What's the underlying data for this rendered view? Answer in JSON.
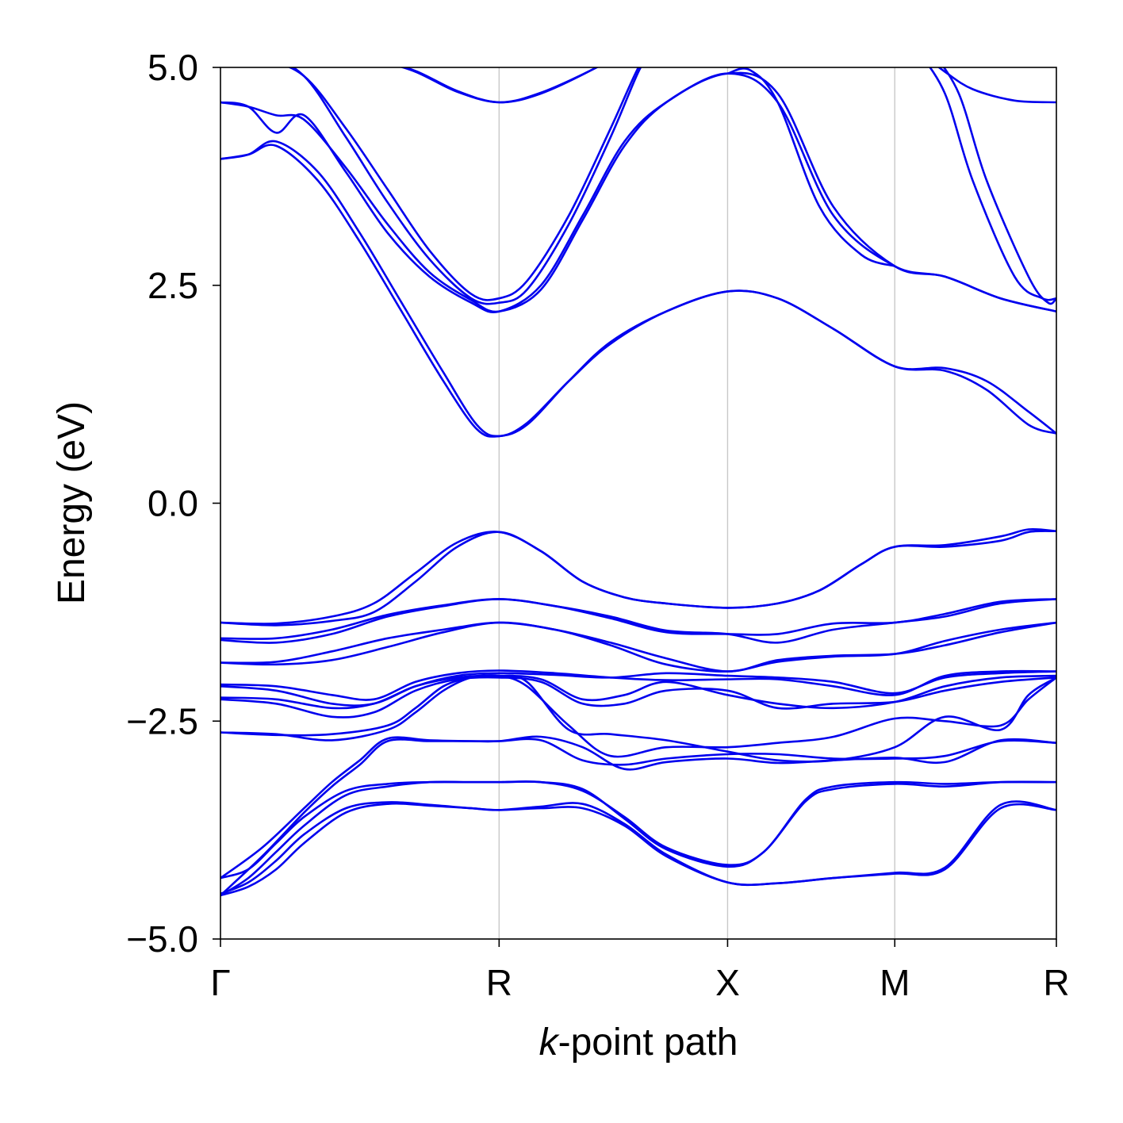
{
  "chart_data": {
    "type": "line",
    "title": "",
    "xlabel_italic": "k",
    "xlabel_rest": "-point path",
    "ylabel": "Energy (eV)",
    "ylim": [
      -5.0,
      5.0
    ],
    "yticks": [
      {
        "value": 5.0,
        "label": "5.0"
      },
      {
        "value": 2.5,
        "label": "2.5"
      },
      {
        "value": 0.0,
        "label": "0.0"
      },
      {
        "value": -2.5,
        "label": "−2.5"
      },
      {
        "value": -5.0,
        "label": "−5.0"
      }
    ],
    "xlim": [
      0,
      3
    ],
    "kpoints": [
      {
        "position": 0.0,
        "label": "Γ"
      },
      {
        "position": 1.0,
        "label": "R"
      },
      {
        "position": 1.82,
        "label": "X"
      },
      {
        "position": 2.42,
        "label": "M"
      },
      {
        "position": 3.0,
        "label": "R"
      }
    ],
    "grid": "vertical lines at k-points",
    "band_color": "#0000ee",
    "series": [
      {
        "x": [
          0,
          0.1,
          0.2,
          0.3,
          0.45,
          0.6,
          0.75,
          0.9,
          1.0,
          1.15,
          1.3,
          1.45,
          1.6,
          1.82,
          2.0,
          2.2,
          2.42,
          2.6,
          2.8,
          3.0
        ],
        "y": [
          -4.5,
          -4.4,
          -4.2,
          -3.9,
          -3.55,
          -3.45,
          -3.47,
          -3.5,
          -3.52,
          -3.5,
          -3.5,
          -3.7,
          -4.05,
          -4.35,
          -4.36,
          -4.3,
          -4.25,
          -4.2,
          -3.5,
          -3.52
        ]
      },
      {
        "x": [
          0,
          0.1,
          0.2,
          0.3,
          0.45,
          0.6,
          0.75,
          0.9,
          1.0,
          1.15,
          1.3,
          1.45,
          1.6,
          1.82,
          2.0,
          2.2,
          2.42,
          2.6,
          2.8,
          3.0
        ],
        "y": [
          -4.48,
          -4.35,
          -4.1,
          -3.8,
          -3.5,
          -3.43,
          -3.46,
          -3.5,
          -3.52,
          -3.48,
          -3.45,
          -3.68,
          -4.03,
          -4.35,
          -4.36,
          -4.3,
          -4.24,
          -4.18,
          -3.46,
          -3.52
        ]
      },
      {
        "x": [
          0,
          0.1,
          0.2,
          0.3,
          0.45,
          0.6,
          0.75,
          0.9,
          1.0,
          1.15,
          1.3,
          1.45,
          1.6,
          1.82,
          1.95,
          2.1,
          2.2,
          2.42,
          2.6,
          2.8,
          3.0
        ],
        "y": [
          -4.3,
          -4.2,
          -3.9,
          -3.6,
          -3.3,
          -3.22,
          -3.2,
          -3.2,
          -3.2,
          -3.2,
          -3.3,
          -3.6,
          -3.95,
          -4.15,
          -4.0,
          -3.4,
          -3.25,
          -3.2,
          -3.22,
          -3.2,
          -3.2
        ]
      },
      {
        "x": [
          0,
          0.1,
          0.2,
          0.3,
          0.45,
          0.6,
          0.75,
          0.9,
          1.0,
          1.15,
          1.3,
          1.45,
          1.6,
          1.82,
          1.95,
          2.1,
          2.2,
          2.42,
          2.6,
          2.8,
          3.0
        ],
        "y": [
          -4.5,
          -4.3,
          -4.0,
          -3.7,
          -3.35,
          -3.25,
          -3.2,
          -3.2,
          -3.2,
          -3.2,
          -3.28,
          -3.62,
          -3.97,
          -4.17,
          -4.0,
          -3.42,
          -3.28,
          -3.22,
          -3.25,
          -3.2,
          -3.2
        ]
      },
      {
        "x": [
          0,
          0.15,
          0.3,
          0.4,
          0.5,
          0.6,
          0.75,
          0.9,
          1.0,
          1.15,
          1.3,
          1.45,
          1.6,
          1.82,
          2.0,
          2.2,
          2.42,
          2.6,
          2.8,
          3.0
        ],
        "y": [
          -4.3,
          -3.95,
          -3.5,
          -3.2,
          -2.95,
          -2.7,
          -2.72,
          -2.73,
          -2.73,
          -2.68,
          -2.8,
          -3.05,
          -2.97,
          -2.93,
          -2.98,
          -2.95,
          -2.92,
          -2.97,
          -2.72,
          -2.75
        ]
      },
      {
        "x": [
          0,
          0.15,
          0.3,
          0.4,
          0.5,
          0.6,
          0.75,
          0.9,
          1.0,
          1.15,
          1.3,
          1.45,
          1.6,
          1.82,
          2.0,
          2.2,
          2.42,
          2.6,
          2.8,
          3.0
        ],
        "y": [
          -4.5,
          -4.05,
          -3.55,
          -3.25,
          -3.0,
          -2.73,
          -2.73,
          -2.73,
          -2.73,
          -2.72,
          -2.95,
          -3.0,
          -2.93,
          -2.88,
          -2.88,
          -2.93,
          -2.93,
          -2.9,
          -2.73,
          -2.75
        ]
      },
      {
        "x": [
          0,
          0.2,
          0.4,
          0.6,
          0.7,
          0.8,
          0.9,
          1.0,
          1.1,
          1.25,
          1.4,
          1.6,
          1.82,
          2.0,
          2.2,
          2.42,
          2.6,
          2.8,
          2.9,
          3.0
        ],
        "y": [
          -2.63,
          -2.65,
          -2.72,
          -2.6,
          -2.4,
          -2.15,
          -2.0,
          -1.98,
          -2.05,
          -2.6,
          -2.65,
          -2.72,
          -2.85,
          -2.95,
          -2.95,
          -2.8,
          -2.45,
          -2.6,
          -2.2,
          -2.0
        ]
      },
      {
        "x": [
          0,
          0.2,
          0.4,
          0.6,
          0.7,
          0.8,
          0.9,
          1.0,
          1.1,
          1.25,
          1.4,
          1.6,
          1.82,
          2.0,
          2.2,
          2.42,
          2.6,
          2.8,
          2.9,
          3.0
        ],
        "y": [
          -2.63,
          -2.66,
          -2.65,
          -2.55,
          -2.35,
          -2.1,
          -2.0,
          -1.98,
          -2.1,
          -2.55,
          -2.9,
          -2.8,
          -2.8,
          -2.75,
          -2.68,
          -2.47,
          -2.5,
          -2.55,
          -2.25,
          -2.0
        ]
      },
      {
        "x": [
          0,
          0.2,
          0.4,
          0.55,
          0.7,
          0.85,
          1.0,
          1.15,
          1.3,
          1.45,
          1.6,
          1.82,
          2.0,
          2.2,
          2.42,
          2.6,
          2.8,
          3.0
        ],
        "y": [
          -2.25,
          -2.3,
          -2.45,
          -2.4,
          -2.15,
          -2.02,
          -2.0,
          -2.05,
          -2.3,
          -2.3,
          -2.15,
          -2.15,
          -2.35,
          -2.3,
          -2.28,
          -2.15,
          -2.05,
          -2.0
        ]
      },
      {
        "x": [
          0,
          0.2,
          0.4,
          0.55,
          0.7,
          0.85,
          1.0,
          1.15,
          1.3,
          1.45,
          1.6,
          1.82,
          2.0,
          2.2,
          2.42,
          2.6,
          2.8,
          3.0
        ],
        "y": [
          -2.23,
          -2.25,
          -2.35,
          -2.3,
          -2.1,
          -2.0,
          -1.98,
          -2.02,
          -2.25,
          -2.2,
          -2.05,
          -2.2,
          -2.3,
          -2.35,
          -2.28,
          -2.1,
          -2.0,
          -1.98
        ]
      },
      {
        "x": [
          0,
          0.2,
          0.4,
          0.55,
          0.7,
          0.85,
          1.0,
          1.2,
          1.4,
          1.6,
          1.82,
          2.0,
          2.2,
          2.42,
          2.6,
          2.8,
          3.0
        ],
        "y": [
          -2.08,
          -2.1,
          -2.2,
          -2.25,
          -2.05,
          -1.95,
          -1.92,
          -1.95,
          -2.0,
          -2.03,
          -2.02,
          -2.02,
          -2.1,
          -2.2,
          -1.98,
          -1.93,
          -1.93
        ]
      },
      {
        "x": [
          0,
          0.2,
          0.4,
          0.55,
          0.7,
          0.85,
          1.0,
          1.2,
          1.4,
          1.6,
          1.82,
          2.0,
          2.2,
          2.42,
          2.6,
          2.8,
          3.0
        ],
        "y": [
          -2.1,
          -2.15,
          -2.3,
          -2.3,
          -2.1,
          -1.98,
          -1.95,
          -1.97,
          -2.0,
          -1.95,
          -1.98,
          -2.0,
          -2.05,
          -2.18,
          -2.0,
          -1.95,
          -1.93
        ]
      },
      {
        "x": [
          0,
          0.2,
          0.4,
          0.6,
          0.8,
          1.0,
          1.2,
          1.4,
          1.6,
          1.82,
          2.0,
          2.2,
          2.42,
          2.6,
          2.8,
          3.0
        ],
        "y": [
          -1.83,
          -1.85,
          -1.8,
          -1.65,
          -1.48,
          -1.37,
          -1.45,
          -1.6,
          -1.78,
          -1.93,
          -1.8,
          -1.75,
          -1.73,
          -1.63,
          -1.48,
          -1.37
        ]
      },
      {
        "x": [
          0,
          0.2,
          0.4,
          0.6,
          0.8,
          1.0,
          1.2,
          1.4,
          1.6,
          1.82,
          2.0,
          2.2,
          2.42,
          2.6,
          2.8,
          3.0
        ],
        "y": [
          -1.83,
          -1.82,
          -1.7,
          -1.55,
          -1.45,
          -1.37,
          -1.45,
          -1.63,
          -1.85,
          -1.93,
          -1.82,
          -1.76,
          -1.73,
          -1.58,
          -1.45,
          -1.37
        ]
      },
      {
        "x": [
          0,
          0.2,
          0.4,
          0.6,
          0.8,
          1.0,
          1.2,
          1.4,
          1.6,
          1.82,
          2.0,
          2.2,
          2.42,
          2.6,
          2.8,
          3.0
        ],
        "y": [
          -1.57,
          -1.6,
          -1.5,
          -1.3,
          -1.18,
          -1.1,
          -1.18,
          -1.32,
          -1.48,
          -1.5,
          -1.5,
          -1.38,
          -1.37,
          -1.27,
          -1.13,
          -1.1
        ]
      },
      {
        "x": [
          0,
          0.2,
          0.4,
          0.6,
          0.8,
          1.0,
          1.2,
          1.4,
          1.6,
          1.82,
          2.0,
          2.2,
          2.42,
          2.6,
          2.8,
          3.0
        ],
        "y": [
          -1.55,
          -1.55,
          -1.45,
          -1.28,
          -1.17,
          -1.1,
          -1.18,
          -1.3,
          -1.46,
          -1.5,
          -1.6,
          -1.45,
          -1.37,
          -1.3,
          -1.15,
          -1.1
        ]
      },
      {
        "x": [
          0,
          0.2,
          0.4,
          0.55,
          0.7,
          0.85,
          1.0,
          1.15,
          1.3,
          1.45,
          1.6,
          1.82,
          2.0,
          2.15,
          2.3,
          2.42,
          2.6,
          2.8,
          2.9,
          3.0
        ],
        "y": [
          -1.37,
          -1.38,
          -1.3,
          -1.15,
          -0.8,
          -0.45,
          -0.33,
          -0.55,
          -0.9,
          -1.08,
          -1.15,
          -1.2,
          -1.15,
          -1.0,
          -0.7,
          -0.5,
          -0.48,
          -0.38,
          -0.3,
          -0.32
        ]
      },
      {
        "x": [
          0,
          0.2,
          0.4,
          0.55,
          0.7,
          0.85,
          1.0,
          1.15,
          1.3,
          1.45,
          1.6,
          1.82,
          2.0,
          2.15,
          2.3,
          2.42,
          2.6,
          2.8,
          2.9,
          3.0
        ],
        "y": [
          -1.37,
          -1.4,
          -1.35,
          -1.25,
          -0.9,
          -0.5,
          -0.33,
          -0.55,
          -0.9,
          -1.08,
          -1.15,
          -1.2,
          -1.15,
          -1.0,
          -0.7,
          -0.5,
          -0.5,
          -0.43,
          -0.33,
          -0.32
        ]
      },
      {
        "x": [
          0,
          0.1,
          0.2,
          0.35,
          0.5,
          0.65,
          0.8,
          0.92,
          1.0,
          1.1,
          1.25,
          1.4,
          1.6,
          1.82,
          2.0,
          2.2,
          2.42,
          2.6,
          2.75,
          2.9,
          3.0
        ],
        "y": [
          3.95,
          4.0,
          4.1,
          3.7,
          3.0,
          2.2,
          1.4,
          0.85,
          0.77,
          0.9,
          1.4,
          1.85,
          2.2,
          2.43,
          2.35,
          2.0,
          1.57,
          1.52,
          1.3,
          0.9,
          0.8
        ]
      },
      {
        "x": [
          0,
          0.1,
          0.2,
          0.35,
          0.5,
          0.65,
          0.8,
          0.92,
          1.0,
          1.1,
          1.25,
          1.4,
          1.6,
          1.82,
          2.0,
          2.2,
          2.42,
          2.6,
          2.75,
          2.9,
          3.0
        ],
        "y": [
          3.95,
          4.0,
          4.15,
          3.8,
          3.1,
          2.3,
          1.5,
          0.9,
          0.77,
          0.92,
          1.4,
          1.83,
          2.2,
          2.43,
          2.35,
          2.0,
          1.57,
          1.55,
          1.4,
          1.05,
          0.8
        ]
      },
      {
        "x": [
          0,
          0.1,
          0.2,
          0.3,
          0.45,
          0.6,
          0.75,
          0.9,
          1.0,
          1.15,
          1.3,
          1.45,
          1.6,
          1.82,
          2.0,
          2.2,
          2.42,
          2.6,
          2.8,
          3.0
        ],
        "y": [
          4.6,
          4.55,
          4.25,
          4.45,
          3.8,
          3.1,
          2.6,
          2.3,
          2.2,
          2.5,
          3.3,
          4.15,
          4.6,
          4.93,
          4.6,
          3.3,
          2.72,
          2.6,
          2.35,
          2.2
        ]
      },
      {
        "x": [
          0,
          0.1,
          0.2,
          0.3,
          0.45,
          0.6,
          0.75,
          0.9,
          1.0,
          1.15,
          1.3,
          1.45,
          1.6,
          1.82,
          2.0,
          2.2,
          2.42,
          2.6,
          2.8,
          3.0
        ],
        "y": [
          4.6,
          4.55,
          4.45,
          4.4,
          3.85,
          3.2,
          2.65,
          2.33,
          2.2,
          2.45,
          3.25,
          4.1,
          4.6,
          4.93,
          4.7,
          3.4,
          2.72,
          2.6,
          2.35,
          2.2
        ]
      },
      {
        "x": [
          0,
          0.15,
          0.3,
          0.45,
          0.6,
          0.75,
          0.9,
          1.0,
          1.1,
          1.25,
          1.4,
          1.5,
          1.55
        ],
        "y": [
          5.2,
          5.1,
          4.9,
          4.3,
          3.6,
          2.9,
          2.4,
          2.35,
          2.55,
          3.3,
          4.3,
          5.0,
          5.2
        ]
      },
      {
        "x": [
          0,
          0.15,
          0.3,
          0.45,
          0.6,
          0.75,
          0.9,
          1.0,
          1.1,
          1.25,
          1.4,
          1.5,
          1.55
        ],
        "y": [
          5.2,
          5.15,
          4.9,
          4.2,
          3.45,
          2.8,
          2.35,
          2.3,
          2.45,
          3.2,
          4.2,
          4.95,
          5.2
        ]
      },
      {
        "x": [
          1.82,
          1.9,
          2.0,
          2.15,
          2.3,
          2.42
        ],
        "y": [
          4.93,
          4.97,
          4.6,
          3.4,
          2.85,
          2.72
        ]
      },
      {
        "x": [
          0.55,
          0.7,
          0.85,
          1.0,
          1.15,
          1.35,
          1.45
        ],
        "y": [
          5.1,
          4.95,
          4.72,
          4.6,
          4.7,
          5.0,
          5.2
        ]
      },
      {
        "x": [
          0.55,
          0.7,
          0.85,
          1.0,
          1.15,
          1.35,
          1.45
        ],
        "y": [
          5.1,
          4.96,
          4.73,
          4.6,
          4.71,
          5.0,
          5.2
        ]
      },
      {
        "x": [
          2.5,
          2.6,
          2.7,
          2.85,
          3.0
        ],
        "y": [
          5.2,
          4.95,
          4.75,
          4.62,
          4.6
        ]
      },
      {
        "x": [
          2.5,
          2.6,
          2.7,
          2.85,
          2.95,
          3.0
        ],
        "y": [
          5.2,
          4.7,
          3.7,
          2.6,
          2.35,
          2.35
        ]
      },
      {
        "x": [
          2.55,
          2.65,
          2.75,
          2.9,
          2.97,
          3.0
        ],
        "y": [
          5.2,
          4.7,
          3.7,
          2.6,
          2.3,
          2.35
        ]
      }
    ]
  }
}
